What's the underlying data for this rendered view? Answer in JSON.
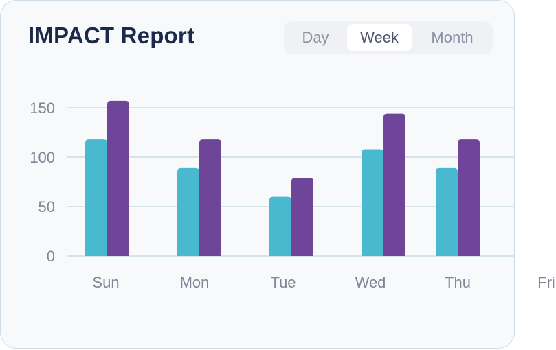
{
  "title": "IMPACT Report",
  "period_tabs": [
    {
      "label": "Day",
      "active": false
    },
    {
      "label": "Week",
      "active": true
    },
    {
      "label": "Month",
      "active": false
    }
  ],
  "colors": {
    "series_1": "#48b9cf",
    "series_2": "#6f4599",
    "gridline": "#cddde6"
  },
  "chart_data": {
    "type": "bar",
    "categories": [
      "Sun",
      "Mon",
      "Tue",
      "Wed",
      "Thu",
      "Fri"
    ],
    "series": [
      {
        "values": [
          118,
          89,
          60,
          108,
          89,
          null
        ]
      },
      {
        "values": [
          157,
          118,
          79,
          144,
          118,
          null
        ]
      }
    ],
    "y_ticks": [
      "0",
      "50",
      "100",
      "150"
    ],
    "ylim": [
      0,
      150
    ],
    "grid": true,
    "xlabel": "",
    "ylabel": ""
  }
}
